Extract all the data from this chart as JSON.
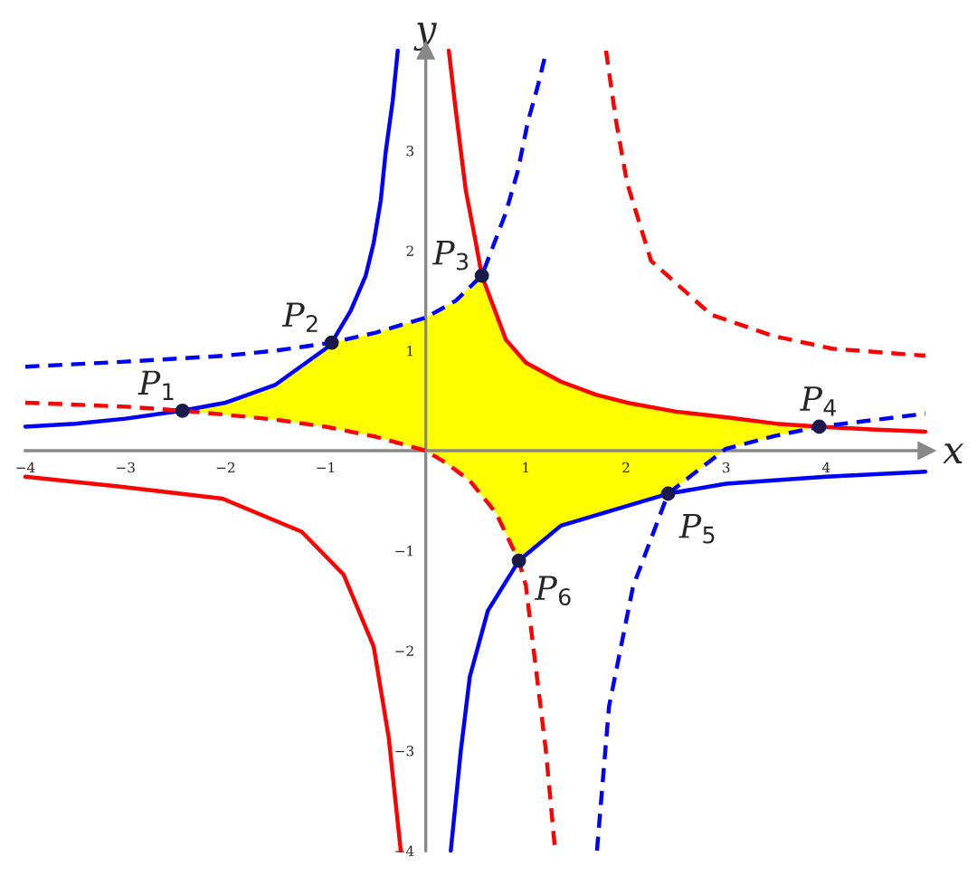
{
  "chart_data": {
    "type": "line",
    "xlabel": "x",
    "ylabel": "y",
    "xlim": [
      -4,
      5
    ],
    "ylim": [
      -4,
      4
    ],
    "xticks": [
      {
        "value": -4,
        "label": "−4"
      },
      {
        "value": -3,
        "label": "−3"
      },
      {
        "value": -2,
        "label": "−2"
      },
      {
        "value": -1,
        "label": "−1"
      },
      1,
      2,
      3,
      4
    ],
    "yticks": [
      {
        "value": -4,
        "label": "−4"
      },
      {
        "value": -3,
        "label": "−3"
      },
      {
        "value": -2,
        "label": "−2"
      },
      {
        "value": -1,
        "label": "−1"
      },
      1,
      2,
      3
    ],
    "grid": false,
    "legend": false,
    "series": [
      {
        "type": "line",
        "color": "#0000ff",
        "line_style": "solid",
        "x": [
          -4,
          -3.5,
          -3,
          -2.43,
          -2,
          -1.5,
          -1,
          -0.94,
          -0.75,
          -0.6,
          -0.52,
          -0.45,
          -0.4,
          -0.33,
          -0.28
        ],
        "values": [
          0.24,
          0.27,
          0.32,
          0.4,
          0.48,
          0.66,
          1.02,
          1.08,
          1.4,
          1.75,
          2.08,
          2.5,
          2.99,
          3.5,
          4.0
        ]
      },
      {
        "type": "line",
        "color": "#0000ff",
        "line_style": "dashed",
        "x": [
          -4,
          -3,
          -2,
          -1.5,
          -0.94,
          -0.5,
          0,
          0.3,
          0.56,
          0.8,
          0.92,
          1.02,
          1.12,
          1.2
        ],
        "values": [
          0.84,
          0.89,
          0.95,
          1.0,
          1.08,
          1.18,
          1.33,
          1.5,
          1.75,
          2.38,
          2.8,
          3.29,
          3.65,
          3.98
        ]
      },
      {
        "type": "line",
        "color": "#ff0000",
        "line_style": "solid",
        "x": [
          0.23,
          0.3,
          0.4,
          0.5,
          0.56,
          0.8,
          1.0,
          1.35,
          1.7,
          2.01,
          2.5,
          3.03,
          3.5,
          3.93,
          4.5,
          4.99
        ],
        "values": [
          4.0,
          3.4,
          2.6,
          2.08,
          1.75,
          1.11,
          0.88,
          0.69,
          0.56,
          0.48,
          0.39,
          0.33,
          0.27,
          0.24,
          0.21,
          0.19
        ]
      },
      {
        "type": "line",
        "color": "#ff0000",
        "line_style": "dashed",
        "x": [
          1.8,
          1.9,
          2.01,
          2.25,
          2.85,
          3.46,
          4.06,
          4.99
        ],
        "values": [
          4.0,
          3.3,
          2.68,
          1.9,
          1.36,
          1.15,
          1.02,
          0.95
        ]
      },
      {
        "type": "line",
        "color": "#ff0000",
        "line_style": "dashed",
        "x": [
          -4,
          -3,
          -2.43,
          -2,
          -1.5,
          -1,
          -0.5,
          0,
          0.2,
          0.44,
          0.7,
          0.93,
          1.0,
          1.11,
          1.2,
          1.29
        ],
        "values": [
          0.48,
          0.44,
          0.4,
          0.36,
          0.31,
          0.24,
          0.14,
          0,
          -0.12,
          -0.3,
          -0.62,
          -1.1,
          -1.35,
          -2.26,
          -3.0,
          -3.98
        ]
      },
      {
        "type": "line",
        "color": "#ff0000",
        "line_style": "solid",
        "x": [
          -4,
          -3.05,
          -2.03,
          -1.24,
          -0.82,
          -0.52,
          -0.37,
          -0.25
        ],
        "values": [
          -0.26,
          -0.36,
          -0.48,
          -0.81,
          -1.24,
          -1.96,
          -2.87,
          -4.0
        ]
      },
      {
        "type": "line",
        "color": "#0000ff",
        "line_style": "solid",
        "x": [
          0.25,
          0.35,
          0.44,
          0.62,
          0.93,
          1.35,
          2.42,
          3.0,
          4.0,
          4.99
        ],
        "values": [
          -4.0,
          -3.0,
          -2.26,
          -1.6,
          -1.1,
          -0.75,
          -0.43,
          -0.33,
          -0.26,
          -0.21
        ]
      },
      {
        "type": "line",
        "color": "#0000ff",
        "line_style": "dashed",
        "x": [
          1.71,
          1.83,
          2.07,
          2.42,
          3.0,
          3.5,
          3.93,
          4.99
        ],
        "values": [
          -4.0,
          -2.56,
          -1.36,
          -0.43,
          0.02,
          0.15,
          0.24,
          0.37
        ]
      },
      {
        "type": "scatter",
        "color": "#1a1a4d",
        "x": [
          -2.43,
          -0.94,
          0.56,
          3.93,
          2.42,
          0.93
        ],
        "values": [
          0.4,
          1.08,
          1.75,
          0.24,
          -0.43,
          -1.1
        ]
      }
    ],
    "annotations": [
      {
        "text": "P$_{1}$",
        "x": -2.43,
        "y": 0.4
      },
      {
        "text": "P$_{2}$",
        "x": -0.94,
        "y": 1.08
      },
      {
        "text": "P$_{3}$",
        "x": 0.56,
        "y": 1.75
      },
      {
        "text": "P$_{4}$",
        "x": 3.93,
        "y": 0.24
      },
      {
        "text": "P$_{5}$",
        "x": 2.42,
        "y": -0.43
      },
      {
        "text": "P$_{6}$",
        "x": 0.93,
        "y": -1.1
      }
    ]
  }
}
